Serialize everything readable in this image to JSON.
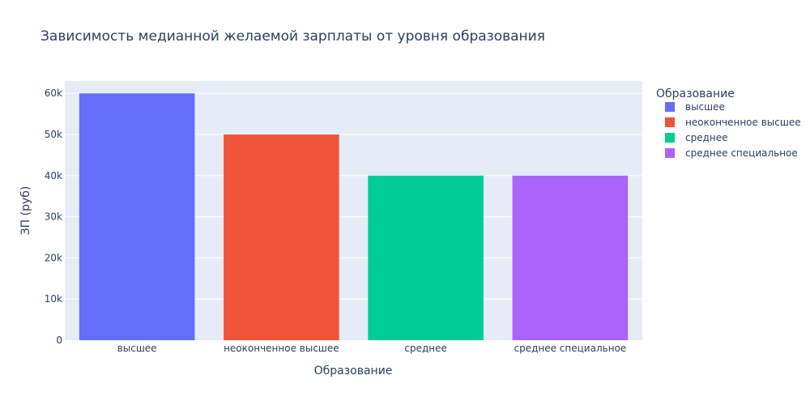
{
  "chart_data": {
    "type": "bar",
    "title": "Зависимость медианной желаемой зарплаты от уровня образования",
    "xlabel": "Образование",
    "ylabel": "ЗП (руб)",
    "categories": [
      "высшее",
      "неоконченное высшее",
      "среднее",
      "среднее специальное"
    ],
    "values": [
      60000,
      50000,
      40000,
      40000
    ],
    "ylim": [
      0,
      63000
    ],
    "yticks": [
      0,
      10000,
      20000,
      30000,
      40000,
      50000,
      60000
    ],
    "ytick_labels": [
      "0",
      "10k",
      "20k",
      "30k",
      "40k",
      "50k",
      "60k"
    ],
    "grid": true,
    "legend": {
      "title": "Образование",
      "placement": "right",
      "entries": [
        "высшее",
        "неоконченное высшее",
        "среднее",
        "среднее специальное"
      ]
    },
    "colors": [
      "#636efa",
      "#EF553B",
      "#00cc96",
      "#ab63fa"
    ],
    "plot_bg": "#e5ecf6"
  }
}
